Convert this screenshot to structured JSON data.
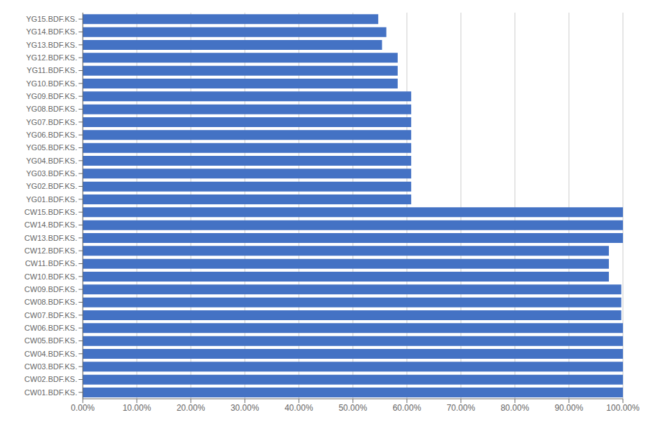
{
  "chart_data": {
    "type": "bar",
    "orientation": "horizontal",
    "categories": [
      "YG15.BDF.KS.",
      "YG14.BDF.KS.",
      "YG13.BDF.KS.",
      "YG12.BDF.KS.",
      "YG11.BDF.KS.",
      "YG10.BDF.KS.",
      "YG09.BDF.KS.",
      "YG08.BDF.KS.",
      "YG07.BDF.KS.",
      "YG06.BDF.KS.",
      "YG05.BDF.KS.",
      "YG04.BDF.KS.",
      "YG03.BDF.KS.",
      "YG02.BDF.KS.",
      "YG01.BDF.KS.",
      "CW15.BDF.KS.",
      "CW14.BDF.KS.",
      "CW13.BDF.KS.",
      "CW12.BDF.KS.",
      "CW11.BDF.KS.",
      "CW10.BDF.KS.",
      "CW09.BDF.KS.",
      "CW08.BDF.KS.",
      "CW07.BDF.KS.",
      "CW06.BDF.KS.",
      "CW05.BDF.KS.",
      "CW04.BDF.KS.",
      "CW03.BDF.KS.",
      "CW02.BDF.KS.",
      "CW01.BDF.KS."
    ],
    "values": [
      0.547,
      0.562,
      0.554,
      0.583,
      0.583,
      0.583,
      0.608,
      0.608,
      0.608,
      0.608,
      0.608,
      0.608,
      0.608,
      0.608,
      0.608,
      1.0,
      1.0,
      1.0,
      0.974,
      0.974,
      0.974,
      0.997,
      0.997,
      0.997,
      1.0,
      1.0,
      1.0,
      1.0,
      1.0,
      1.0
    ],
    "color": "#4472C4",
    "xlim": [
      0.0,
      1.0
    ],
    "xticks": [
      {
        "value": 0.0,
        "label": "0.00%"
      },
      {
        "value": 0.1,
        "label": "10.00%"
      },
      {
        "value": 0.2,
        "label": "20.00%"
      },
      {
        "value": 0.3,
        "label": "30.00%"
      },
      {
        "value": 0.4,
        "label": "40.00%"
      },
      {
        "value": 0.5,
        "label": "50.00%"
      },
      {
        "value": 0.6,
        "label": "60.00%"
      },
      {
        "value": 0.7,
        "label": "70.00%"
      },
      {
        "value": 0.8,
        "label": "80.00%"
      },
      {
        "value": 0.9,
        "label": "90.00%"
      },
      {
        "value": 1.0,
        "label": "100.00%"
      }
    ],
    "grid": true
  }
}
